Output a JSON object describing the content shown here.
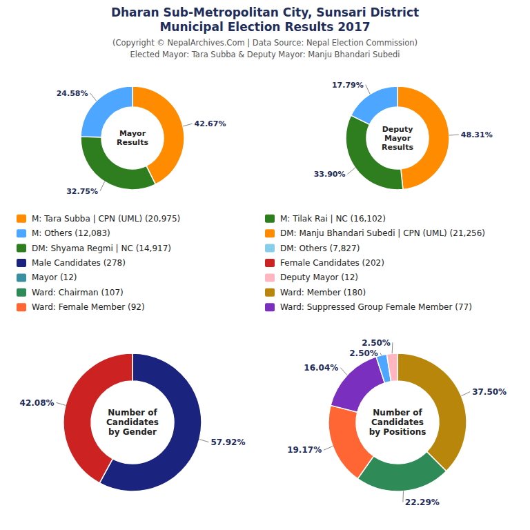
{
  "title": [
    "Dharan Sub-Metropolitan City, Sunsari District",
    "Municipal Election Results 2017"
  ],
  "subtitle": [
    "(Copyright © NepalArchives.Com | Data Source: Nepal Election Commission)",
    "Elected Mayor: Tara Subba & Deputy Mayor: Manju Bhandari Subedi"
  ],
  "chart_data": [
    {
      "type": "pie",
      "title": "Mayor\nResults",
      "values": [
        42.67,
        32.75,
        24.58
      ],
      "value_labels": [
        "42.67%",
        "32.75%",
        "24.58%"
      ],
      "colors": [
        "#FF8C00",
        "#2E7D1E",
        "#4DA6FF"
      ],
      "data_labels": true
    },
    {
      "type": "pie",
      "title": "Deputy\nMayor\nResults",
      "values": [
        48.31,
        33.9,
        17.79
      ],
      "value_labels": [
        "48.31%",
        "33.90%",
        "17.79%"
      ],
      "colors": [
        "#FF8C00",
        "#2E7D1E",
        "#4DA6FF"
      ],
      "data_labels": true
    },
    {
      "type": "pie",
      "title": "Number of\nCandidates\nby Gender",
      "values": [
        57.92,
        42.08
      ],
      "value_labels": [
        "57.92%",
        "42.08%"
      ],
      "colors": [
        "#1A237E",
        "#CC2222"
      ],
      "data_labels": true
    },
    {
      "type": "pie",
      "title": "Number of\nCandidates\nby Positions",
      "values": [
        37.5,
        22.29,
        19.17,
        16.04,
        2.5,
        2.5
      ],
      "value_labels": [
        "37.50%",
        "22.29%",
        "19.17%",
        "16.04%",
        "2.50%",
        "2.50%"
      ],
      "colors": [
        "#B8860B",
        "#2E8B57",
        "#FF6633",
        "#7B2FBE",
        "#4DA6FF",
        "#FFB6C1"
      ],
      "data_labels": true
    },
    {
      "type": "legend",
      "categories": [
        "M: Tara Subba | CPN (UML) (20,975)",
        "M: Others (12,083)",
        "DM: Shyama Regmi | NC (14,917)",
        "Male Candidates (278)",
        "Mayor (12)",
        "Ward: Chairman (107)",
        "Ward: Female Member (92)",
        "M: Tilak Rai | NC (16,102)",
        "DM: Manju Bhandari Subedi | CPN (UML) (21,256)",
        "DM: Others (7,827)",
        "Female Candidates (202)",
        "Deputy Mayor (12)",
        "Ward: Member (180)",
        "Ward: Suppressed Group Female Member (77)"
      ],
      "colors": [
        "#FF8C00",
        "#4DA6FF",
        "#2E7D1E",
        "#1A237E",
        "#3A8FA0",
        "#2E8B57",
        "#FF6633",
        "#2E7D1E",
        "#FF8C00",
        "#87CEEB",
        "#CC2222",
        "#FFB6C1",
        "#B8860B",
        "#7B2FBE"
      ]
    }
  ]
}
